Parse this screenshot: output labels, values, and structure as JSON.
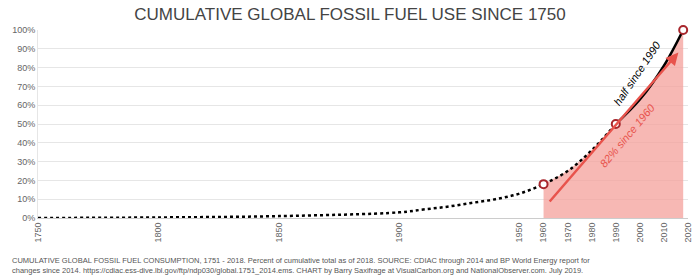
{
  "chart_data": {
    "type": "line",
    "title": "CUMULATIVE GLOBAL FOSSIL FUEL USE SINCE 1750",
    "x": [
      1750,
      1800,
      1850,
      1900,
      1910,
      1920,
      1930,
      1940,
      1950,
      1960,
      1970,
      1980,
      1990,
      2000,
      2010,
      2018
    ],
    "xlim": [
      1750,
      2020
    ],
    "xticks": [
      1750,
      1800,
      1850,
      1900,
      1950,
      1960,
      1970,
      1980,
      1990,
      2000,
      2010,
      2020
    ],
    "ylim": [
      0,
      100
    ],
    "yticks": [
      {
        "value": 0,
        "label": "0%"
      },
      {
        "value": 10,
        "label": "10%"
      },
      {
        "value": 20,
        "label": "20%"
      },
      {
        "value": 30,
        "label": "30%"
      },
      {
        "value": 40,
        "label": "40%"
      },
      {
        "value": 50,
        "label": "50%"
      },
      {
        "value": 60,
        "label": "60%"
      },
      {
        "value": 70,
        "label": "70%"
      },
      {
        "value": 80,
        "label": "80%"
      },
      {
        "value": 90,
        "label": "90%"
      },
      {
        "value": 100,
        "label": "100%"
      }
    ],
    "grid": true,
    "series": [
      {
        "type": "area",
        "color": "#f4a09b",
        "line_style": "solid",
        "values": [
          null,
          null,
          null,
          null,
          null,
          null,
          null,
          null,
          null,
          18,
          25,
          36,
          50,
          63,
          81,
          100
        ]
      },
      {
        "type": "line",
        "color": "#000000",
        "line_style": "dotted",
        "values": [
          0,
          0.3,
          1,
          3,
          4.5,
          6,
          8,
          10,
          13,
          18,
          25,
          36,
          50,
          null,
          null,
          null
        ]
      },
      {
        "type": "line",
        "color": "#000000",
        "line_style": "solid",
        "values": [
          null,
          null,
          null,
          null,
          null,
          null,
          null,
          null,
          null,
          null,
          null,
          null,
          50,
          63,
          81,
          100
        ]
      },
      {
        "type": "scatter",
        "color": "#a8262c",
        "marker": "circle",
        "values": [
          null,
          null,
          null,
          null,
          null,
          null,
          null,
          null,
          null,
          18,
          null,
          null,
          50,
          null,
          null,
          100
        ]
      }
    ],
    "annotations": [
      "half since 1990",
      "82% since 1960"
    ],
    "footnote": [
      "CUMULATIVE GLOBAL FOSSIL FUEL CONSUMPTION, 1751 - 2018. Percent of cumulative total as of 2018. SOURCE: CDIAC through 2014 and BP World Energy report for",
      "changes since 2014. https://cdiac.ess-dive.lbl.gov/ftp/ndp030/global.1751_2014.ems. CHART by Barry Saxifrage at VisualCarbon.org and NationalObserver.com. July 2019."
    ]
  }
}
